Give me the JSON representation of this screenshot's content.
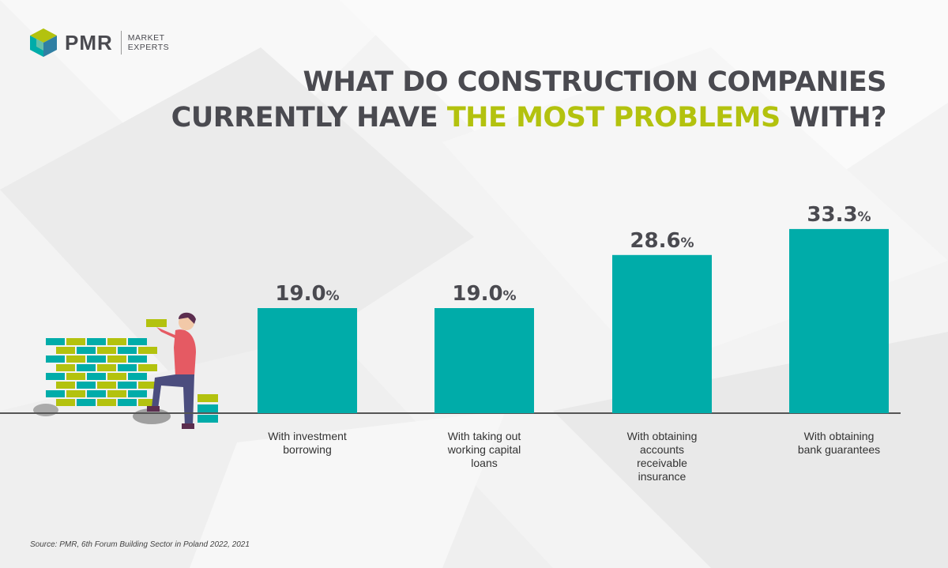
{
  "brand": {
    "name": "PMR",
    "tagline_1": "MARKET",
    "tagline_2": "EXPERTS"
  },
  "headline": {
    "line_1": "WHAT DO CONSTRUCTION COMPANIES",
    "line_2_a": "CURRENTLY HAVE ",
    "line_2_highlight": "THE MOST PROBLEMS",
    "line_2_b": " WITH?"
  },
  "chart_data": {
    "type": "bar",
    "title": "WHAT DO CONSTRUCTION COMPANIES CURRENTLY HAVE THE MOST PROBLEMS WITH?",
    "categories": [
      [
        "With investment",
        "borrowing"
      ],
      [
        "With taking out",
        "working capital",
        "loans"
      ],
      [
        "With obtaining",
        "accounts",
        "receivable",
        "insurance"
      ],
      [
        "With obtaining",
        "bank guarantees"
      ]
    ],
    "values": [
      19.0,
      19.0,
      28.6,
      33.3
    ],
    "value_labels": [
      "19.0",
      "19.0",
      "28.6",
      "33.3"
    ],
    "unit": "%",
    "ylim": [
      0,
      40
    ],
    "grid": false,
    "legend": "none"
  },
  "colors": {
    "bar": "#00aca9",
    "text_dark": "#4a4a50",
    "accent": "#b3c20e"
  },
  "footer": {
    "source": "Source: PMR, 6th Forum Building Sector in Poland 2022, 2021"
  }
}
